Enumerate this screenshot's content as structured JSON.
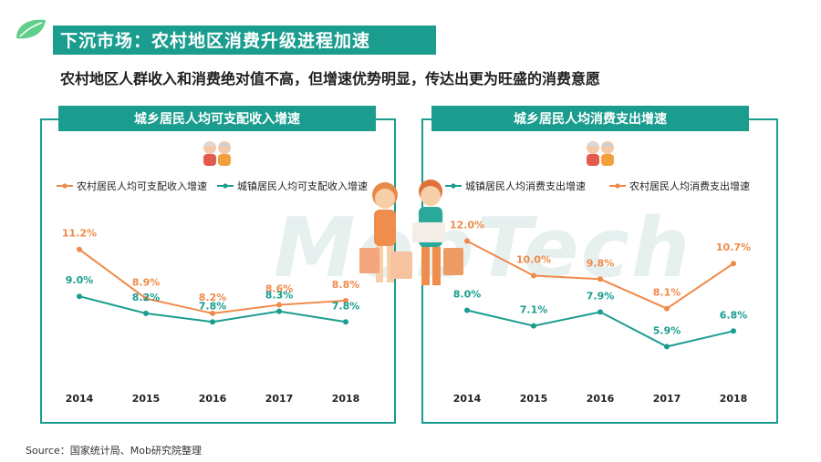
{
  "header": {
    "title": "下沉市场：农村地区消费升级进程加速",
    "subtitle": "农村地区人群收入和消费绝对值不高，但增速优势明显，传达出更为旺盛的消费意愿"
  },
  "watermark": "MobTech",
  "source": "Source：国家统计局、Mob研究院整理",
  "colors": {
    "orange": "#f08a4b",
    "teal": "#1a9d8f"
  },
  "chart_data": [
    {
      "type": "line",
      "title": "城乡居民人均可支配收入增速",
      "categories": [
        "2014",
        "2015",
        "2016",
        "2017",
        "2018"
      ],
      "series": [
        {
          "name": "农村居民人均可支配收入增速",
          "color": "#f08a4b",
          "values": [
            11.2,
            8.9,
            8.2,
            8.6,
            8.8
          ],
          "labels": [
            "11.2%",
            "8.9%",
            "8.2%",
            "8.6%",
            "8.8%"
          ]
        },
        {
          "name": "城镇居民人均可支配收入增速",
          "color": "#1a9d8f",
          "values": [
            9.0,
            8.2,
            7.8,
            8.3,
            7.8
          ],
          "labels": [
            "9.0%",
            "8.2%",
            "7.8%",
            "8.3%",
            "7.8%"
          ]
        }
      ],
      "legend_position": "top"
    },
    {
      "type": "line",
      "title": "城乡居民人均消费支出增速",
      "categories": [
        "2014",
        "2015",
        "2016",
        "2017",
        "2018"
      ],
      "series": [
        {
          "name": "城镇居民人均消费支出增速",
          "color": "#1a9d8f",
          "values": [
            8.0,
            7.1,
            7.9,
            5.9,
            6.8
          ],
          "labels": [
            "8.0%",
            "7.1%",
            "7.9%",
            "5.9%",
            "6.8%"
          ]
        },
        {
          "name": "农村居民人均消费支出增速",
          "color": "#f08a4b",
          "values": [
            12.0,
            10.0,
            9.8,
            8.1,
            10.7
          ],
          "labels": [
            "12.0%",
            "10.0%",
            "9.8%",
            "8.1%",
            "10.7%"
          ]
        }
      ],
      "legend_position": "top"
    }
  ]
}
